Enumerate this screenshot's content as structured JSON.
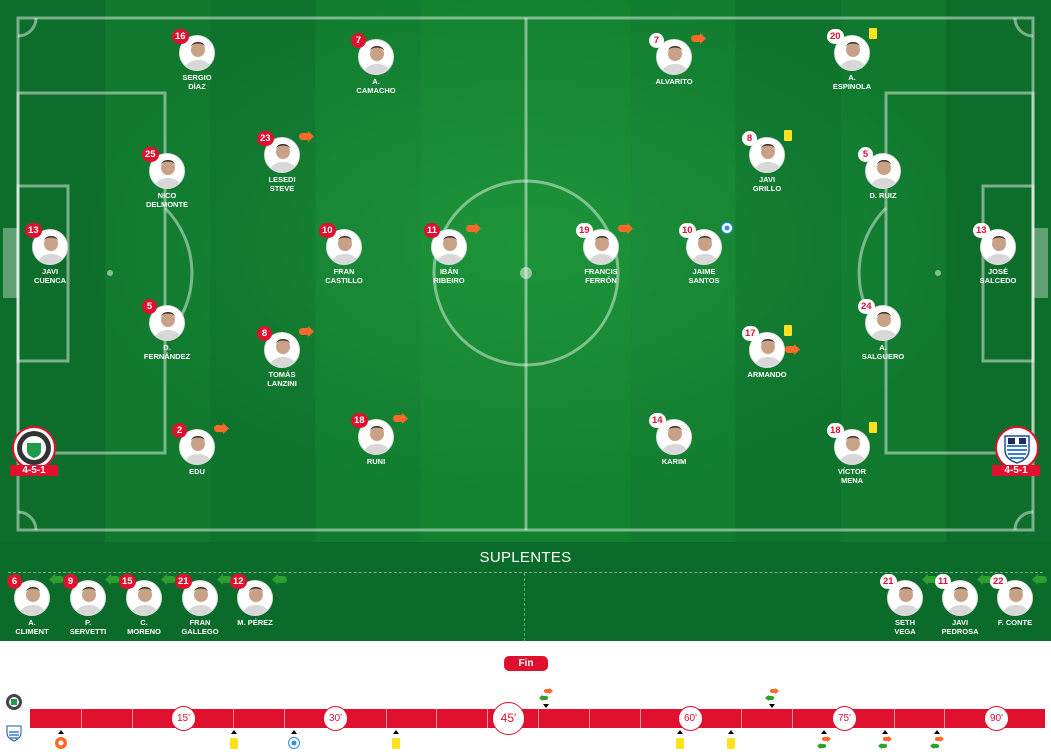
{
  "colors": {
    "accent": "#e0102f",
    "pitch": "#13822f",
    "yellow_card": "#ffe21f",
    "goal": "#2f8fe0",
    "sub_out": "#ff6a2a",
    "sub_in": "#2ea02e"
  },
  "home": {
    "formation": "4-5-1",
    "crest": "green-white-round-crest",
    "players": [
      {
        "number": "16",
        "name": "SERGIO\nDÍAZ",
        "events": []
      },
      {
        "number": "7",
        "name": "A.\nCAMACHO",
        "events": []
      },
      {
        "number": "23",
        "name": "LESEDI\nSTEVE",
        "events": [
          "sub-out"
        ]
      },
      {
        "number": "25",
        "name": "NICO\nDELMONTE",
        "events": []
      },
      {
        "number": "13",
        "name": "JAVI\nCUENCA",
        "events": []
      },
      {
        "number": "10",
        "name": "FRAN\nCASTILLO",
        "events": []
      },
      {
        "number": "11",
        "name": "IBÁN\nRIBEIRO",
        "events": [
          "sub-out"
        ]
      },
      {
        "number": "5",
        "name": "D.\nFERNÁNDEZ",
        "events": []
      },
      {
        "number": "8",
        "name": "TOMÁS\nLANZINI",
        "events": [
          "sub-out"
        ]
      },
      {
        "number": "2",
        "name": "EDU",
        "events": [
          "sub-out"
        ]
      },
      {
        "number": "18",
        "name": "RUNI",
        "events": [
          "sub-out"
        ]
      }
    ],
    "subs": [
      {
        "number": "6",
        "name": "A.\nCLIMENT",
        "events": [
          "sub-in"
        ]
      },
      {
        "number": "9",
        "name": "P.\nSERVETTI",
        "events": [
          "sub-in"
        ]
      },
      {
        "number": "15",
        "name": "C.\nMORENO",
        "events": [
          "sub-in"
        ]
      },
      {
        "number": "21",
        "name": "FRAN\nGALLEGO",
        "events": [
          "sub-in"
        ]
      },
      {
        "number": "12",
        "name": "M. PÉREZ",
        "events": [
          "sub-in"
        ]
      }
    ]
  },
  "away": {
    "formation": "4-5-1",
    "crest": "blue-white-striped-shield-crest",
    "players": [
      {
        "number": "7",
        "name": "ALVARITO",
        "events": [
          "sub-out"
        ]
      },
      {
        "number": "20",
        "name": "A.\nESPINOLA",
        "events": [
          "yellow-card"
        ]
      },
      {
        "number": "8",
        "name": "JAVI\nGRILLO",
        "events": [
          "yellow-card"
        ]
      },
      {
        "number": "5",
        "name": "D. RUIZ",
        "events": []
      },
      {
        "number": "13",
        "name": "JOSÉ\nSALCEDO",
        "events": []
      },
      {
        "number": "10",
        "name": "JAIME\nSANTOS",
        "events": [
          "goal"
        ]
      },
      {
        "number": "19",
        "name": "FRANCIS\nFERRÓN",
        "events": [
          "sub-out"
        ]
      },
      {
        "number": "24",
        "name": "A.\nSALGUERO",
        "events": []
      },
      {
        "number": "17",
        "name": "ARMANDO",
        "events": [
          "yellow-card",
          "sub-out"
        ]
      },
      {
        "number": "14",
        "name": "KARIM",
        "events": []
      },
      {
        "number": "18",
        "name": "VÍCTOR\nMENA",
        "events": [
          "yellow-card"
        ]
      }
    ],
    "subs": [
      {
        "number": "21",
        "name": "SETH\nVEGA",
        "events": [
          "sub-in"
        ]
      },
      {
        "number": "11",
        "name": "JAVI\nPEDROSA",
        "events": [
          "sub-in"
        ]
      },
      {
        "number": "22",
        "name": "F. CONTE",
        "events": [
          "sub-in"
        ]
      }
    ]
  },
  "subs_title": "SUPLENTES",
  "timeline": {
    "status": "Fin",
    "minute_labels": [
      "15'",
      "30'",
      "45'",
      "60'",
      "75'",
      "90'"
    ],
    "events": [
      {
        "team": "home",
        "minute": 46,
        "type": "substitution"
      },
      {
        "team": "home",
        "minute": 68,
        "type": "substitution"
      },
      {
        "team": "away",
        "minute": 3,
        "type": "goal-own"
      },
      {
        "team": "away",
        "minute": 20,
        "type": "yellow-card"
      },
      {
        "team": "away",
        "minute": 26,
        "type": "goal"
      },
      {
        "team": "away",
        "minute": 36,
        "type": "yellow-card"
      },
      {
        "team": "away",
        "minute": 59,
        "type": "yellow-card"
      },
      {
        "team": "away",
        "minute": 64,
        "type": "yellow-card"
      },
      {
        "team": "away",
        "minute": 73,
        "type": "substitution"
      },
      {
        "team": "away",
        "minute": 79,
        "type": "substitution"
      },
      {
        "team": "away",
        "minute": 84,
        "type": "substitution"
      }
    ]
  }
}
